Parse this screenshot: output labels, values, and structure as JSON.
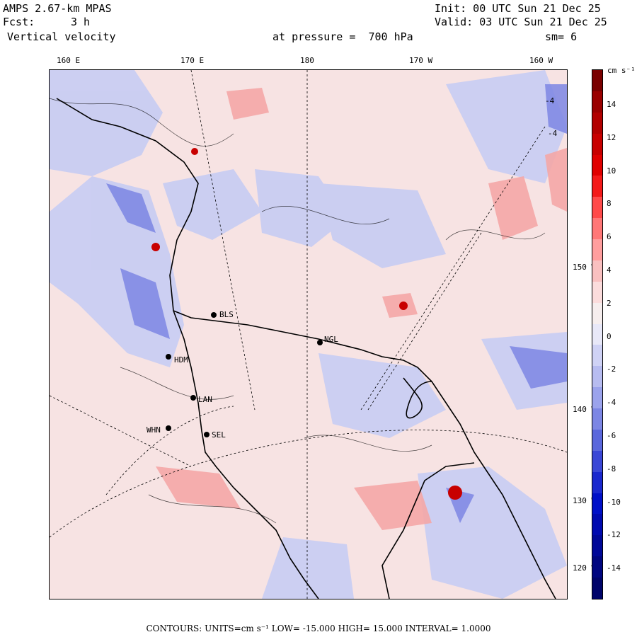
{
  "header": {
    "model": "AMPS 2.67-km MPAS",
    "init": "Init: 00 UTC Sun 21 Dec 25",
    "fcst_label": "Fcst:",
    "fcst_value": "3 h",
    "valid": "Valid: 03 UTC Sun 21 Dec 25",
    "field": "Vertical velocity",
    "pressure": "at pressure =  700 hPa",
    "smoothing": "sm= 6"
  },
  "longitude_labels_top": [
    "160 E",
    "170 E",
    "180",
    "170 W",
    "160 W"
  ],
  "longitude_labels_right": [
    "150 W",
    "140 W",
    "130 W",
    "120 W"
  ],
  "stations": [
    "BLS",
    "NGL",
    "LAN",
    "WHN",
    "SEL",
    "HDM"
  ],
  "colorbar": {
    "units": "cm s⁻¹",
    "ticks": [
      "14",
      "12",
      "10",
      "8",
      "6",
      "4",
      "2",
      "0",
      "-2",
      "-4",
      "-6",
      "-8",
      "-10",
      "-12",
      "-14"
    ],
    "colors": [
      "#7a0000",
      "#9a0000",
      "#b20000",
      "#c80000",
      "#e00000",
      "#f41a1a",
      "#ff4a4a",
      "#ff7777",
      "#ff9e9e",
      "#f9c0c0",
      "#fbdcdc",
      "#f6eeee",
      "#e8e8f8",
      "#cfd2f5",
      "#b7bcf0",
      "#9ba3ec",
      "#7c86e4",
      "#5a67dc",
      "#3a47d6",
      "#1a28ce",
      "#0010c8",
      "#000ab0",
      "#000898",
      "#000680",
      "#00046a"
    ]
  },
  "map_labels": [
    "-4",
    "-4"
  ],
  "footer": "CONTOURS:  UNITS=cm s⁻¹  LOW= -15.000    HIGH=  15.000    INTERVAL=   1.0000"
}
